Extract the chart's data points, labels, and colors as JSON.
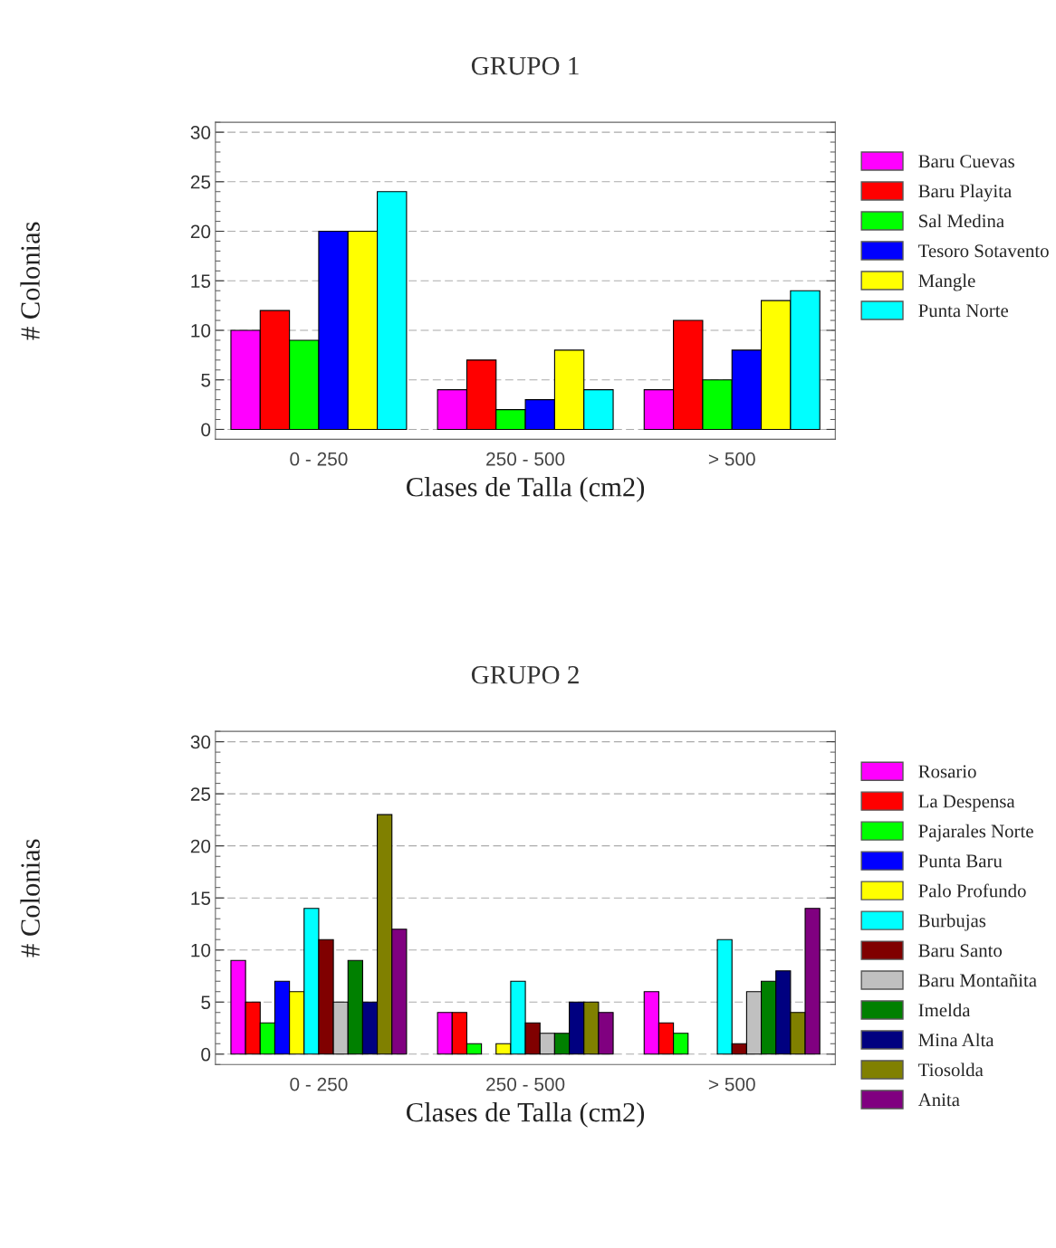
{
  "chart_data": [
    {
      "type": "bar",
      "title": "GRUPO 1",
      "xlabel": "Clases de Talla (cm2)",
      "ylabel": "# Colonias",
      "categories": [
        "0 - 250",
        "250 - 500",
        "> 500"
      ],
      "ylim": [
        -1,
        31
      ],
      "yticks": [
        0,
        5,
        10,
        15,
        20,
        25,
        30
      ],
      "grid": "y",
      "legend": "right",
      "series": [
        {
          "name": "Baru Cuevas",
          "color": "#ff00ff",
          "values": [
            10,
            4,
            4
          ]
        },
        {
          "name": "Baru Playita",
          "color": "#ff0000",
          "values": [
            12,
            7,
            11
          ]
        },
        {
          "name": "Sal Medina",
          "color": "#00ff00",
          "values": [
            9,
            2,
            5
          ]
        },
        {
          "name": "Tesoro Sotavento",
          "color": "#0000ff",
          "values": [
            20,
            3,
            8
          ]
        },
        {
          "name": "Mangle",
          "color": "#ffff00",
          "values": [
            20,
            8,
            13
          ]
        },
        {
          "name": "Punta Norte",
          "color": "#00ffff",
          "values": [
            24,
            4,
            14
          ]
        }
      ]
    },
    {
      "type": "bar",
      "title": "GRUPO 2",
      "xlabel": "Clases de Talla (cm2)",
      "ylabel": "# Colonias",
      "categories": [
        "0 - 250",
        "250 - 500",
        "> 500"
      ],
      "ylim": [
        -1,
        31
      ],
      "yticks": [
        0,
        5,
        10,
        15,
        20,
        25,
        30
      ],
      "grid": "y",
      "legend": "right",
      "series": [
        {
          "name": "Rosario",
          "color": "#ff00ff",
          "values": [
            9,
            4,
            6
          ]
        },
        {
          "name": "La Despensa",
          "color": "#ff0000",
          "values": [
            5,
            4,
            3
          ]
        },
        {
          "name": "Pajarales Norte",
          "color": "#00ff00",
          "values": [
            3,
            1,
            2
          ]
        },
        {
          "name": "Punta Baru",
          "color": "#0000ff",
          "values": [
            7,
            0,
            0
          ]
        },
        {
          "name": "Palo Profundo",
          "color": "#ffff00",
          "values": [
            6,
            1,
            0
          ]
        },
        {
          "name": "Burbujas",
          "color": "#00ffff",
          "values": [
            14,
            7,
            11
          ]
        },
        {
          "name": "Baru Santo",
          "color": "#800000",
          "values": [
            11,
            3,
            1
          ]
        },
        {
          "name": "Baru Montañita",
          "color": "#c0c0c0",
          "values": [
            5,
            2,
            6
          ]
        },
        {
          "name": "Imelda",
          "color": "#008000",
          "values": [
            9,
            2,
            7
          ]
        },
        {
          "name": "Mina Alta",
          "color": "#000080",
          "values": [
            5,
            5,
            8
          ]
        },
        {
          "name": "Tiosolda",
          "color": "#808000",
          "values": [
            23,
            5,
            4
          ]
        },
        {
          "name": "Anita",
          "color": "#800080",
          "values": [
            12,
            4,
            14
          ]
        }
      ]
    }
  ]
}
